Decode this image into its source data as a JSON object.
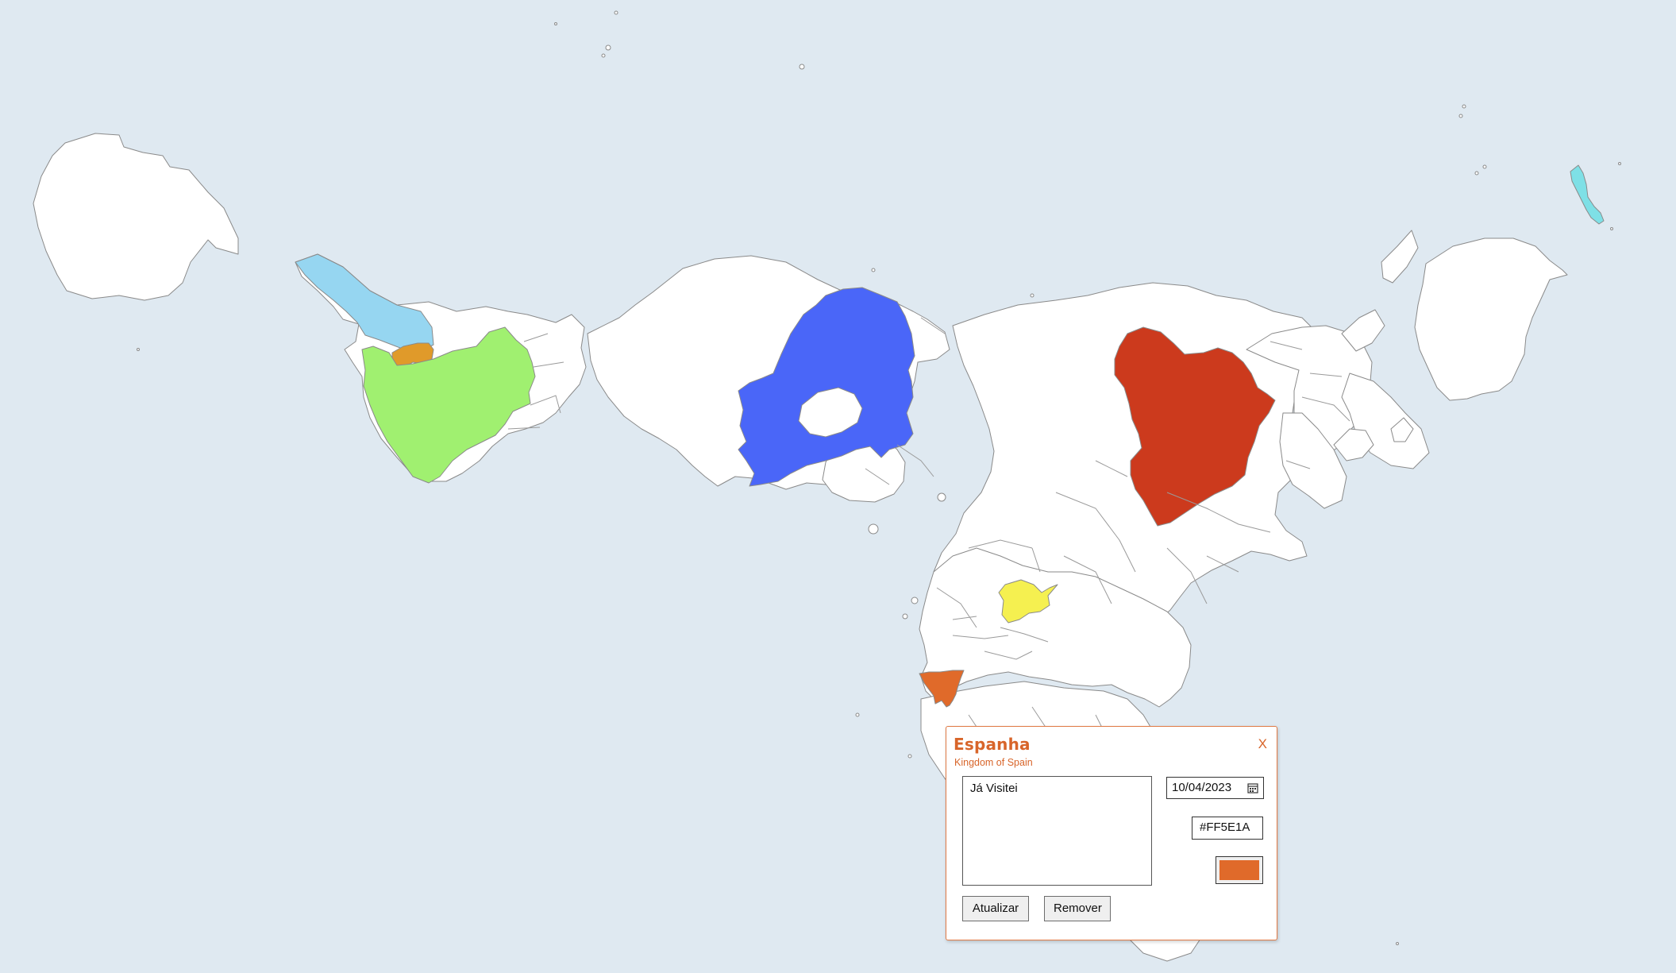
{
  "map": {
    "ocean_color": "#dfe9f1",
    "land_color": "#ffffff",
    "highlighted_regions": [
      {
        "name": "light-blue-region",
        "color": "#96d6f1"
      },
      {
        "name": "orange-small-region",
        "color": "#e09a2a"
      },
      {
        "name": "green-region",
        "color": "#a0f070"
      },
      {
        "name": "blue-region",
        "color": "#4a66f8"
      },
      {
        "name": "red-region",
        "color": "#cc3a1d"
      },
      {
        "name": "yellow-region",
        "color": "#f5f050"
      },
      {
        "name": "spain-region",
        "color": "#e06a2a"
      },
      {
        "name": "cyan-island-region",
        "color": "#7ee0e6"
      }
    ]
  },
  "popup": {
    "title": "Espanha",
    "subtitle": "Kingdom of Spain",
    "close_label": "X",
    "notes_value": "Já Visitei",
    "date_value": "10/04/2023",
    "hex_value": "#FF5E1A",
    "swatch_color": "#e06a2a",
    "update_label": "Atualizar",
    "remove_label": "Remover",
    "accent_color": "#d8652a"
  }
}
